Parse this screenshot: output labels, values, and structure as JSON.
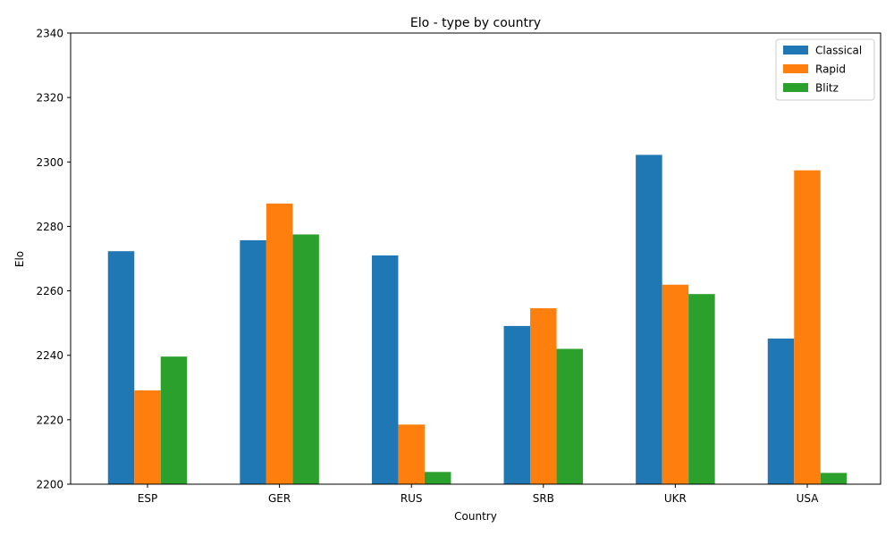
{
  "chart_data": {
    "type": "bar",
    "title": "Elo - type by country",
    "xlabel": "Country",
    "ylabel": "Elo",
    "categories": [
      "ESP",
      "GER",
      "RUS",
      "SRB",
      "UKR",
      "USA"
    ],
    "series": [
      {
        "name": "Classical",
        "color": "#1f77b4",
        "values": [
          2272.3,
          2275.7,
          2271.0,
          2249.1,
          2302.2,
          2245.2
        ]
      },
      {
        "name": "Rapid",
        "color": "#ff7f0e",
        "values": [
          2229.1,
          2287.1,
          2218.5,
          2254.6,
          2261.9,
          2297.4
        ]
      },
      {
        "name": "Blitz",
        "color": "#2ca02c",
        "values": [
          2239.6,
          2277.5,
          2203.8,
          2242.0,
          2259.0,
          2203.5
        ]
      }
    ],
    "ylim": [
      2200,
      2340
    ],
    "yticks": [
      2200,
      2220,
      2240,
      2260,
      2280,
      2300,
      2320,
      2340
    ],
    "legend_position": "top-right",
    "grid": false
  }
}
